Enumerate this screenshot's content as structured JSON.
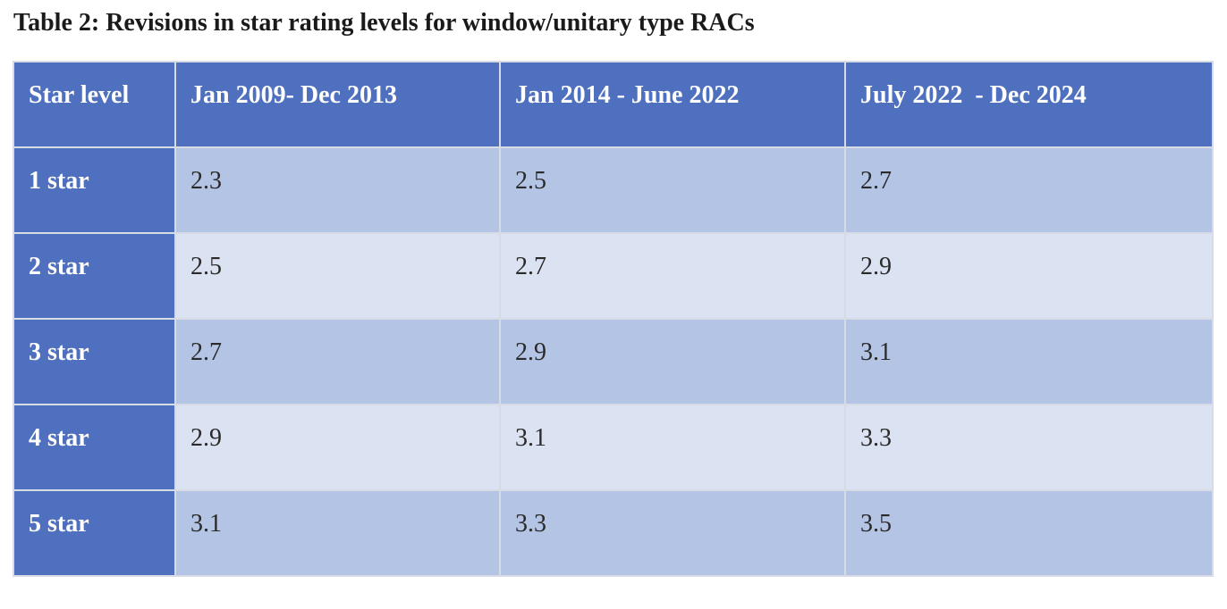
{
  "caption": "Table 2: Revisions in star rating levels for window/unitary type RACs",
  "table": {
    "headers": [
      "Star level",
      "Jan 2009- Dec 2013",
      "Jan 2014 - June 2022",
      "July 2022  - Dec 2024"
    ],
    "rows": [
      {
        "label": "1 star",
        "values": [
          "2.3",
          "2.5",
          "2.7"
        ]
      },
      {
        "label": "2 star",
        "values": [
          "2.5",
          "2.7",
          "2.9"
        ]
      },
      {
        "label": "3 star",
        "values": [
          "2.7",
          "2.9",
          "3.1"
        ]
      },
      {
        "label": "4 star",
        "values": [
          "2.9",
          "3.1",
          "3.3"
        ]
      },
      {
        "label": "5 star",
        "values": [
          "3.1",
          "3.3",
          "3.5"
        ]
      }
    ]
  },
  "colors": {
    "header_bg": "#4f70be",
    "row_band_dark": "#b4c4e4",
    "row_band_light": "#dbe2f1",
    "header_text": "#ffffff",
    "body_text": "#2a2a2a"
  }
}
